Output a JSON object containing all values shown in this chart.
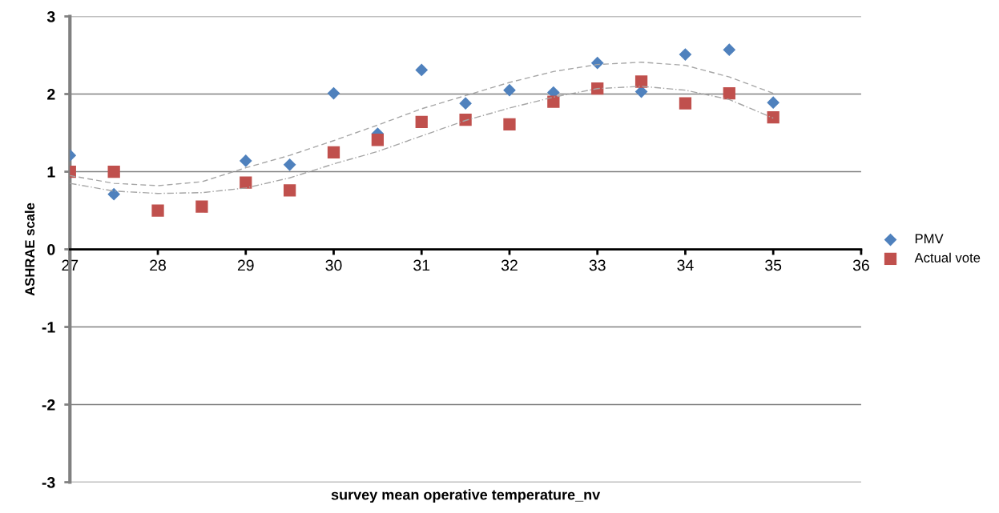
{
  "chart_data": {
    "type": "scatter",
    "xlabel": "survey mean operative temperature_nv",
    "ylabel": "ASHRAE scale",
    "xlim": [
      27,
      36
    ],
    "xticks": [
      27,
      28,
      29,
      30,
      31,
      32,
      33,
      34,
      35,
      36
    ],
    "ylim": [
      -3,
      3
    ],
    "yticks": [
      -3,
      -2,
      -1,
      0,
      1,
      2,
      3
    ],
    "grid": "y",
    "legend": "right",
    "series": [
      {
        "name": "PMV",
        "marker": "diamond",
        "color": "#4f81bd",
        "x": [
          27,
          27.5,
          28,
          28.5,
          29,
          29.5,
          30,
          30.5,
          31,
          31.5,
          32,
          32.5,
          33,
          33.5,
          34,
          34.5,
          35
        ],
        "values": [
          1.21,
          0.71,
          null,
          null,
          1.14,
          1.09,
          2.01,
          1.49,
          2.31,
          1.88,
          2.05,
          2.02,
          2.4,
          2.03,
          2.51,
          2.57,
          1.89
        ]
      },
      {
        "name": "Actual vote",
        "marker": "square",
        "color": "#c0504d",
        "x": [
          27,
          27.5,
          28,
          28.5,
          29,
          29.5,
          30,
          30.5,
          31,
          31.5,
          32,
          32.5,
          33,
          33.5,
          34,
          34.5,
          35
        ],
        "values": [
          1.0,
          1.0,
          0.5,
          0.55,
          0.86,
          0.76,
          1.25,
          1.41,
          1.64,
          1.67,
          1.61,
          1.9,
          2.07,
          2.16,
          1.88,
          2.01,
          1.7
        ]
      },
      {
        "type": "line",
        "line_style": "dashed",
        "marker": "none",
        "color": "#a6a6a6",
        "x": [
          27,
          27.5,
          28,
          28.5,
          29,
          29.5,
          30,
          30.5,
          31,
          31.5,
          32,
          32.5,
          33,
          33.5,
          34,
          34.5,
          35
        ],
        "values": [
          0.95,
          0.85,
          0.82,
          0.87,
          1.05,
          1.21,
          1.4,
          1.6,
          1.81,
          1.98,
          2.15,
          2.29,
          2.38,
          2.41,
          2.37,
          2.22,
          2.01
        ]
      },
      {
        "type": "line",
        "line_style": "dotted",
        "marker": "none",
        "color": "#a6a6a6",
        "x": [
          27,
          27.5,
          28,
          28.5,
          29,
          29.5,
          30,
          30.5,
          31,
          31.5,
          32,
          32.5,
          33,
          33.5,
          34,
          34.5,
          35
        ],
        "values": [
          0.85,
          0.75,
          0.72,
          0.73,
          0.79,
          0.92,
          1.1,
          1.26,
          1.46,
          1.66,
          1.82,
          1.96,
          2.07,
          2.1,
          2.05,
          1.93,
          1.69
        ]
      }
    ]
  }
}
